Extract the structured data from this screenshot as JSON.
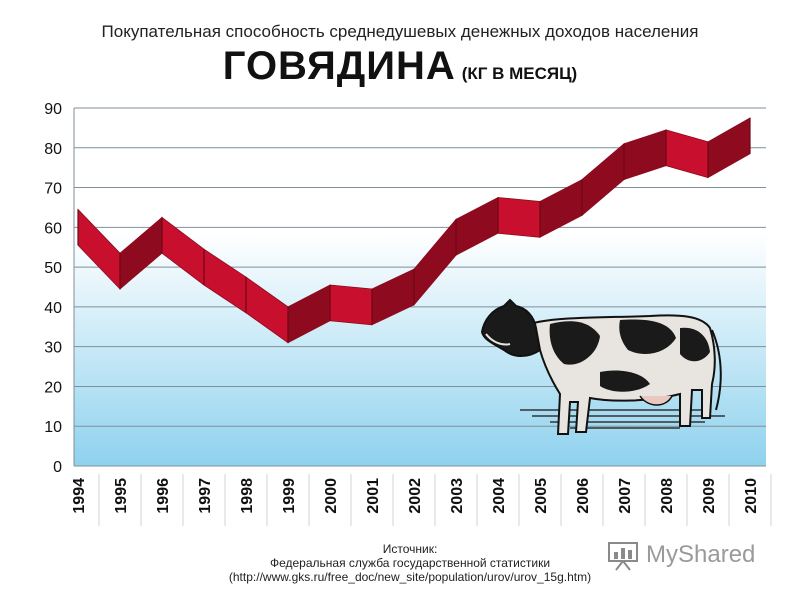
{
  "header": {
    "subtitle": "Покупательная способность среднедушевых денежных доходов населения",
    "title": "ГОВЯДИНА",
    "unit": "(КГ В МЕСЯЦ)"
  },
  "source": {
    "label": "Источник:",
    "agency": "Федеральная служба государственной статистики",
    "url": "(http://www.gks.ru/free_doc/new_site/population/urov/urov_15g.htm)"
  },
  "watermark": {
    "text": "MyShared",
    "icon": "presentation-board-icon"
  },
  "illustration": {
    "icon": "cow-icon"
  },
  "colors": {
    "ribbon": "#c8102e",
    "ribbon_dark": "#8e0a1e",
    "bg_top": "#ffffff",
    "bg_bottom": "#8fd2ee",
    "grid": "#7f8f99"
  },
  "chart_data": {
    "type": "line",
    "title": "ГОВЯДИНА",
    "subtitle": "Покупательная способность среднедушевых денежных доходов населения",
    "xlabel": "",
    "ylabel": "",
    "categories": [
      "1994",
      "1995",
      "1996",
      "1997",
      "1998",
      "1999",
      "2000",
      "2001",
      "2002",
      "2003",
      "2004",
      "2005",
      "2006",
      "2007",
      "2008",
      "2009",
      "2010"
    ],
    "series": [
      {
        "values": [
          60,
          49,
          58,
          50,
          43,
          35.5,
          41,
          40,
          45,
          57.5,
          63,
          62,
          67.5,
          76.5,
          80,
          77,
          83
        ]
      }
    ],
    "ylim": [
      0,
      90
    ],
    "yticks": [
      "0",
      "10",
      "20",
      "30",
      "40",
      "50",
      "60",
      "70",
      "80",
      "90"
    ],
    "grid": true,
    "legend": "none"
  }
}
